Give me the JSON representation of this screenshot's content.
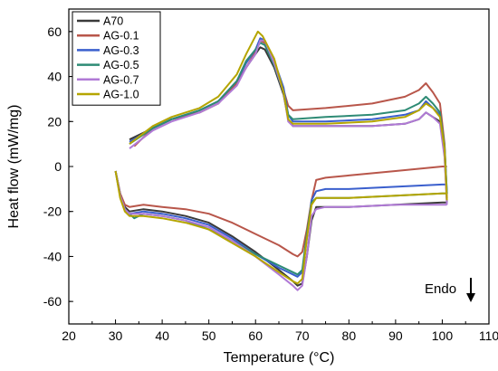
{
  "chart_data": {
    "type": "line",
    "xlabel": "Temperature (°C)",
    "ylabel": "Heat flow (mW/mg)",
    "xlim": [
      20,
      110
    ],
    "ylim": [
      -70,
      70
    ],
    "xticks": [
      20,
      30,
      40,
      50,
      60,
      70,
      80,
      90,
      100,
      110
    ],
    "yticks": [
      -60,
      -40,
      -20,
      0,
      20,
      40,
      60
    ],
    "grid": false,
    "legend_position": "top-left",
    "annotation": "Endo",
    "series": [
      {
        "name": "A70",
        "color": "#3a3a3a",
        "heating": [
          [
            33,
            12
          ],
          [
            38,
            17
          ],
          [
            42,
            21
          ],
          [
            48,
            24
          ],
          [
            52,
            28
          ],
          [
            56,
            37
          ],
          [
            58,
            44
          ],
          [
            60,
            50
          ],
          [
            61,
            53
          ],
          [
            62,
            52
          ],
          [
            64,
            44
          ],
          [
            66,
            32
          ],
          [
            67,
            21
          ],
          [
            68,
            18
          ],
          [
            75,
            18
          ],
          [
            85,
            18
          ],
          [
            92,
            19
          ],
          [
            95,
            21
          ],
          [
            96.5,
            24
          ],
          [
            98,
            22
          ],
          [
            99.5,
            20
          ],
          [
            100.5,
            5
          ],
          [
            101,
            -16
          ]
        ],
        "cooling": [
          [
            30,
            -2
          ],
          [
            31,
            -12
          ],
          [
            32,
            -18
          ],
          [
            33,
            -20
          ],
          [
            36,
            -19
          ],
          [
            40,
            -20
          ],
          [
            45,
            -22
          ],
          [
            50,
            -25
          ],
          [
            55,
            -31
          ],
          [
            60,
            -38
          ],
          [
            65,
            -46
          ],
          [
            68,
            -51
          ],
          [
            69,
            -53
          ],
          [
            70,
            -52
          ],
          [
            71,
            -40
          ],
          [
            72,
            -24
          ],
          [
            73,
            -18
          ],
          [
            75,
            -18
          ],
          [
            80,
            -18
          ],
          [
            90,
            -17
          ],
          [
            100,
            -16
          ],
          [
            101,
            -16
          ]
        ]
      },
      {
        "name": "AG-0.1",
        "color": "#b8564a",
        "heating": [
          [
            34,
            9
          ],
          [
            38,
            17
          ],
          [
            42,
            21
          ],
          [
            48,
            24
          ],
          [
            52,
            28
          ],
          [
            56,
            37
          ],
          [
            58,
            44
          ],
          [
            60,
            51
          ],
          [
            61,
            56
          ],
          [
            62,
            55
          ],
          [
            64,
            46
          ],
          [
            66,
            34
          ],
          [
            67,
            27
          ],
          [
            68,
            25
          ],
          [
            75,
            26
          ],
          [
            85,
            28
          ],
          [
            92,
            31
          ],
          [
            95,
            34
          ],
          [
            96.5,
            37
          ],
          [
            98,
            33
          ],
          [
            99.5,
            28
          ],
          [
            100.5,
            10
          ],
          [
            101,
            -14
          ]
        ],
        "cooling": [
          [
            30,
            -2
          ],
          [
            31,
            -12
          ],
          [
            32,
            -17
          ],
          [
            33,
            -18
          ],
          [
            36,
            -17
          ],
          [
            40,
            -18
          ],
          [
            45,
            -19
          ],
          [
            50,
            -21
          ],
          [
            55,
            -25
          ],
          [
            60,
            -30
          ],
          [
            65,
            -35
          ],
          [
            68,
            -39
          ],
          [
            69,
            -40
          ],
          [
            70,
            -38
          ],
          [
            71,
            -28
          ],
          [
            72,
            -15
          ],
          [
            73,
            -6
          ],
          [
            75,
            -5
          ],
          [
            80,
            -4
          ],
          [
            90,
            -2
          ],
          [
            100,
            0
          ],
          [
            101,
            0
          ]
        ]
      },
      {
        "name": "AG-0.3",
        "color": "#3a5fcd",
        "heating": [
          [
            33,
            11
          ],
          [
            38,
            17
          ],
          [
            42,
            21
          ],
          [
            48,
            25
          ],
          [
            52,
            29
          ],
          [
            56,
            38
          ],
          [
            58,
            46
          ],
          [
            60,
            52
          ],
          [
            61,
            57
          ],
          [
            62,
            56
          ],
          [
            64,
            47
          ],
          [
            66,
            35
          ],
          [
            67,
            23
          ],
          [
            68,
            20
          ],
          [
            75,
            20
          ],
          [
            85,
            21
          ],
          [
            92,
            23
          ],
          [
            95,
            25
          ],
          [
            96.5,
            29
          ],
          [
            98,
            26
          ],
          [
            99.5,
            23
          ],
          [
            100.5,
            8
          ],
          [
            101,
            -12
          ]
        ],
        "cooling": [
          [
            30,
            -2
          ],
          [
            31,
            -13
          ],
          [
            32,
            -19
          ],
          [
            33,
            -21
          ],
          [
            36,
            -20
          ],
          [
            40,
            -21
          ],
          [
            45,
            -23
          ],
          [
            50,
            -26
          ],
          [
            55,
            -32
          ],
          [
            60,
            -39
          ],
          [
            65,
            -45
          ],
          [
            68,
            -48
          ],
          [
            69,
            -49
          ],
          [
            70,
            -47
          ],
          [
            71,
            -32
          ],
          [
            72,
            -15
          ],
          [
            73,
            -11
          ],
          [
            75,
            -10
          ],
          [
            80,
            -10
          ],
          [
            90,
            -9
          ],
          [
            100,
            -8
          ],
          [
            101,
            -8
          ]
        ]
      },
      {
        "name": "AG-0.5",
        "color": "#2e8b75",
        "heating": [
          [
            33,
            10
          ],
          [
            38,
            17
          ],
          [
            42,
            21
          ],
          [
            48,
            25
          ],
          [
            52,
            29
          ],
          [
            56,
            38
          ],
          [
            58,
            47
          ],
          [
            60,
            52
          ],
          [
            61,
            55
          ],
          [
            62,
            54
          ],
          [
            64,
            45
          ],
          [
            66,
            33
          ],
          [
            67,
            23
          ],
          [
            68,
            21
          ],
          [
            75,
            22
          ],
          [
            85,
            23
          ],
          [
            92,
            25
          ],
          [
            95,
            28
          ],
          [
            96.5,
            31
          ],
          [
            98,
            28
          ],
          [
            99.5,
            24
          ],
          [
            100.5,
            9
          ],
          [
            101,
            -12
          ]
        ],
        "cooling": [
          [
            30,
            -2
          ],
          [
            31,
            -13
          ],
          [
            32,
            -19
          ],
          [
            33,
            -21
          ],
          [
            34,
            -23
          ],
          [
            36,
            -21
          ],
          [
            40,
            -22
          ],
          [
            45,
            -24
          ],
          [
            50,
            -28
          ],
          [
            55,
            -33
          ],
          [
            60,
            -39
          ],
          [
            65,
            -44
          ],
          [
            68,
            -47
          ],
          [
            69,
            -48
          ],
          [
            70,
            -46
          ],
          [
            71,
            -30
          ],
          [
            72,
            -16
          ],
          [
            73,
            -14
          ],
          [
            75,
            -14
          ],
          [
            80,
            -14
          ],
          [
            90,
            -13
          ],
          [
            100,
            -12
          ],
          [
            101,
            -12
          ]
        ]
      },
      {
        "name": "AG-0.7",
        "color": "#b07ad6",
        "heating": [
          [
            33,
            8
          ],
          [
            38,
            16
          ],
          [
            42,
            20
          ],
          [
            48,
            24
          ],
          [
            52,
            28
          ],
          [
            56,
            36
          ],
          [
            58,
            44
          ],
          [
            60,
            50
          ],
          [
            61,
            56
          ],
          [
            62,
            56
          ],
          [
            64,
            46
          ],
          [
            66,
            33
          ],
          [
            67,
            20
          ],
          [
            68,
            18
          ],
          [
            75,
            18
          ],
          [
            85,
            18
          ],
          [
            92,
            19
          ],
          [
            95,
            21
          ],
          [
            96.5,
            24
          ],
          [
            98,
            22
          ],
          [
            99.5,
            19
          ],
          [
            100.5,
            4
          ],
          [
            101,
            -17
          ]
        ],
        "cooling": [
          [
            30,
            -2
          ],
          [
            31,
            -13
          ],
          [
            32,
            -19
          ],
          [
            33,
            -21
          ],
          [
            36,
            -21
          ],
          [
            40,
            -22
          ],
          [
            45,
            -24
          ],
          [
            50,
            -27
          ],
          [
            55,
            -33
          ],
          [
            60,
            -40
          ],
          [
            65,
            -48
          ],
          [
            68,
            -53
          ],
          [
            69,
            -55
          ],
          [
            70,
            -53
          ],
          [
            71,
            -40
          ],
          [
            72,
            -22
          ],
          [
            73,
            -19
          ],
          [
            75,
            -18
          ],
          [
            80,
            -18
          ],
          [
            90,
            -17
          ],
          [
            100,
            -17
          ],
          [
            101,
            -17
          ]
        ]
      },
      {
        "name": "AG-1.0",
        "color": "#b5a500",
        "heating": [
          [
            33,
            10
          ],
          [
            38,
            18
          ],
          [
            42,
            22
          ],
          [
            48,
            26
          ],
          [
            52,
            31
          ],
          [
            56,
            41
          ],
          [
            58,
            50
          ],
          [
            60,
            58
          ],
          [
            60.5,
            60
          ],
          [
            61.5,
            58
          ],
          [
            64,
            48
          ],
          [
            66,
            33
          ],
          [
            67,
            21
          ],
          [
            68,
            19
          ],
          [
            75,
            19
          ],
          [
            85,
            20
          ],
          [
            92,
            22
          ],
          [
            95,
            25
          ],
          [
            96.5,
            28
          ],
          [
            98,
            26
          ],
          [
            99.5,
            22
          ],
          [
            100.5,
            8
          ],
          [
            101,
            -15
          ]
        ],
        "cooling": [
          [
            30,
            -2
          ],
          [
            31,
            -14
          ],
          [
            32,
            -20
          ],
          [
            33,
            -22
          ],
          [
            36,
            -22
          ],
          [
            40,
            -23
          ],
          [
            45,
            -25
          ],
          [
            50,
            -28
          ],
          [
            55,
            -34
          ],
          [
            60,
            -40
          ],
          [
            65,
            -47
          ],
          [
            68,
            -51
          ],
          [
            69,
            -52
          ],
          [
            70,
            -50
          ],
          [
            71,
            -32
          ],
          [
            72,
            -17
          ],
          [
            73,
            -14
          ],
          [
            75,
            -14
          ],
          [
            80,
            -14
          ],
          [
            90,
            -13
          ],
          [
            100,
            -12
          ],
          [
            101,
            -12
          ]
        ]
      }
    ]
  }
}
